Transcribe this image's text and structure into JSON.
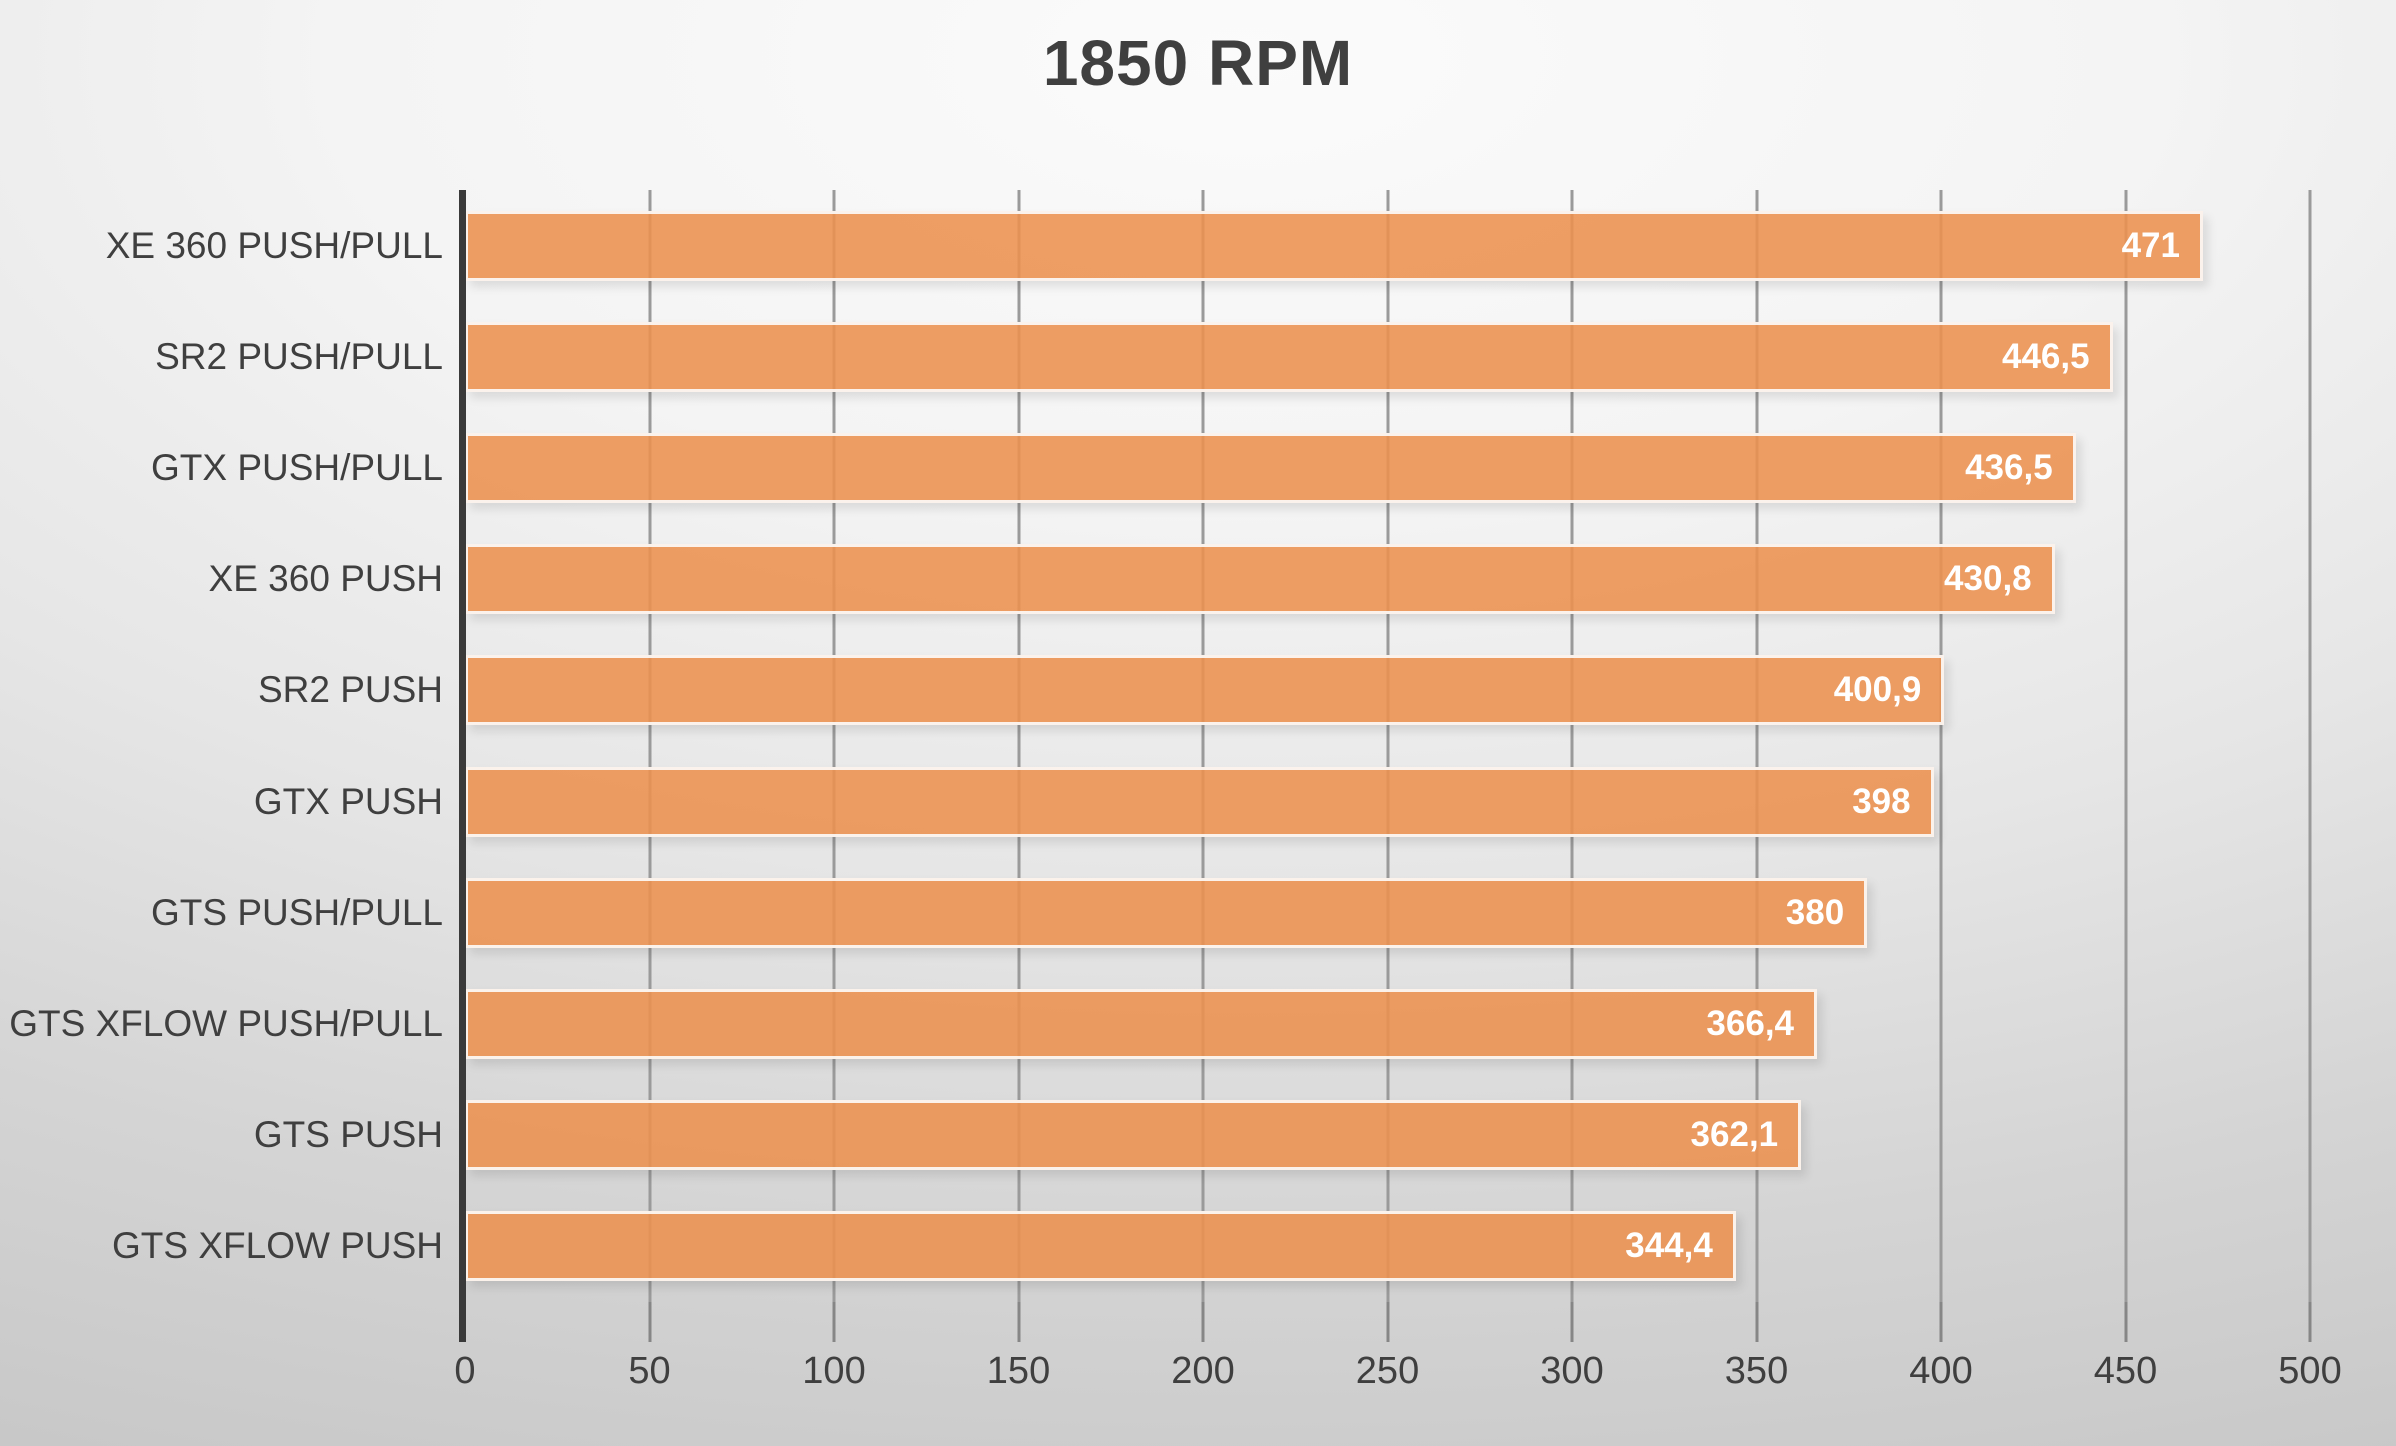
{
  "chart_data": {
    "type": "bar",
    "orientation": "horizontal",
    "title": "1850 RPM",
    "categories": [
      "XE 360 PUSH/PULL",
      "SR2 PUSH/PULL",
      "GTX PUSH/PULL",
      "XE 360 PUSH",
      "SR2 PUSH",
      "GTX PUSH",
      "GTS PUSH/PULL",
      "GTS XFLOW PUSH/PULL",
      "GTS PUSH",
      "GTS XFLOW PUSH"
    ],
    "values": [
      471,
      446.5,
      436.5,
      430.8,
      400.9,
      398,
      380,
      366.4,
      362.1,
      344.4
    ],
    "value_labels": [
      "471",
      "446,5",
      "436,5",
      "430,8",
      "400,9",
      "398",
      "380",
      "366,4",
      "362,1",
      "344,4"
    ],
    "xlabel": "",
    "ylabel": "",
    "xlim": [
      0,
      500
    ],
    "x_ticks": [
      0,
      50,
      100,
      150,
      200,
      250,
      300,
      350,
      400,
      450,
      500
    ],
    "grid": true,
    "legend": false,
    "colors": {
      "bar": "#EC914F",
      "bar_border": "#FCFAF7",
      "gridline": "#9A9A9A",
      "axis_line": "#3A3A3A",
      "text": "#3F3F3F",
      "value_text": "#FFFFFF"
    }
  }
}
